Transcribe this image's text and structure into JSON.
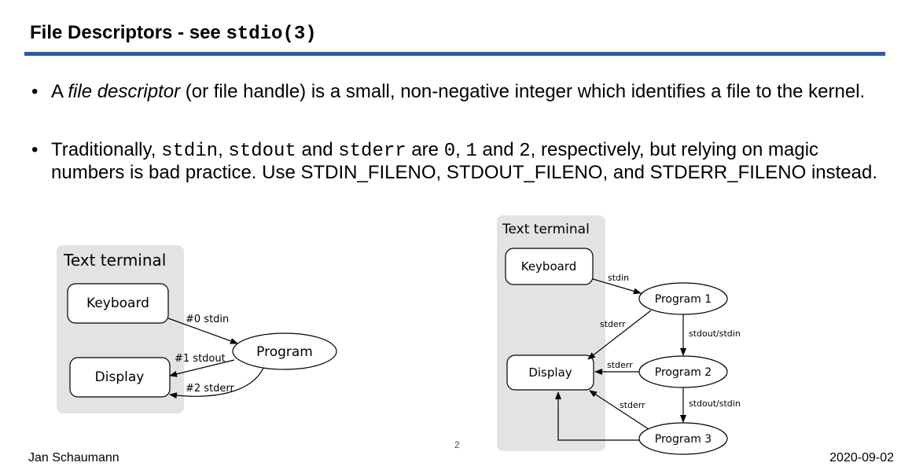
{
  "title": {
    "text": "File Descriptors - see ",
    "code": "stdio(3)"
  },
  "bullets": [
    {
      "t1": "A ",
      "em": "file descriptor",
      "t2": " (or file handle) is a small, non-negative integer which identifies a file to the kernel."
    },
    {
      "t1": "Traditionally, ",
      "c1": "stdin",
      "t2": ", ",
      "c2": "stdout",
      "t3": " and ",
      "c3": "stderr",
      "t4": " are ",
      "c4": "0",
      "t5": ", ",
      "c5": "1",
      "t6": " and ",
      "c6": "2",
      "t7": ", respectively, but relying on magic numbers is bad practice. Use STDIN_FILENO, STDOUT_FILENO, and STDERR_FILENO instead."
    }
  ],
  "diagram_left": {
    "terminal_label": "Text terminal",
    "keyboard": "Keyboard",
    "display": "Display",
    "program": "Program",
    "edge_stdin": "#0 stdin",
    "edge_stdout": "#1 stdout",
    "edge_stderr": "#2 stderr"
  },
  "diagram_right": {
    "terminal_label": "Text terminal",
    "keyboard": "Keyboard",
    "display": "Display",
    "program1": "Program 1",
    "program2": "Program 2",
    "program3": "Program 3",
    "edge_stdin": "stdin",
    "edge_p1_stderr": "stderr",
    "edge_p1_p2": "stdout/stdin",
    "edge_p2_stderr": "stderr",
    "edge_p2_p3": "stdout/stdin",
    "edge_p3_stderr": "stderr"
  },
  "footer": {
    "author": "Jan Schaumann",
    "date": "2020-09-02",
    "page": "2"
  }
}
